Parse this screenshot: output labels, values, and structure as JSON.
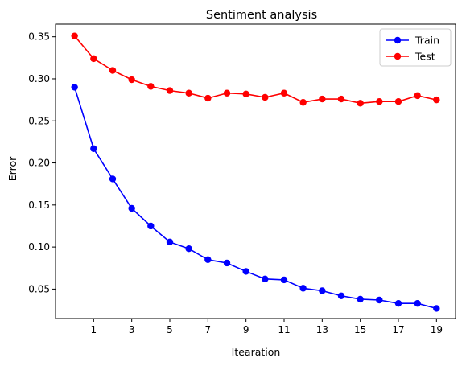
{
  "chart_data": {
    "type": "line",
    "title": "Sentiment analysis",
    "xlabel": "Itearation",
    "ylabel": "Error",
    "xlim": [
      -1,
      20
    ],
    "ylim": [
      0.015,
      0.365
    ],
    "xticks": [
      1,
      3,
      5,
      7,
      9,
      11,
      13,
      15,
      17,
      19
    ],
    "yticks": [
      0.05,
      0.1,
      0.15,
      0.2,
      0.25,
      0.3,
      0.35
    ],
    "ytick_labels": [
      "0.05",
      "0.10",
      "0.15",
      "0.20",
      "0.25",
      "0.30",
      "0.35"
    ],
    "legend_position": "top-right",
    "x": [
      0,
      1,
      2,
      3,
      4,
      5,
      6,
      7,
      8,
      9,
      10,
      11,
      12,
      13,
      14,
      15,
      16,
      17,
      18,
      19
    ],
    "series": [
      {
        "name": "Train",
        "color": "#0000ff",
        "values": [
          0.29,
          0.217,
          0.181,
          0.146,
          0.125,
          0.106,
          0.098,
          0.085,
          0.081,
          0.071,
          0.062,
          0.061,
          0.051,
          0.048,
          0.042,
          0.038,
          0.037,
          0.033,
          0.033,
          0.027
        ]
      },
      {
        "name": "Test",
        "color": "#ff0000",
        "values": [
          0.351,
          0.324,
          0.31,
          0.299,
          0.291,
          0.286,
          0.283,
          0.277,
          0.283,
          0.282,
          0.278,
          0.283,
          0.272,
          0.276,
          0.276,
          0.271,
          0.273,
          0.273,
          0.28,
          0.275
        ]
      }
    ]
  }
}
